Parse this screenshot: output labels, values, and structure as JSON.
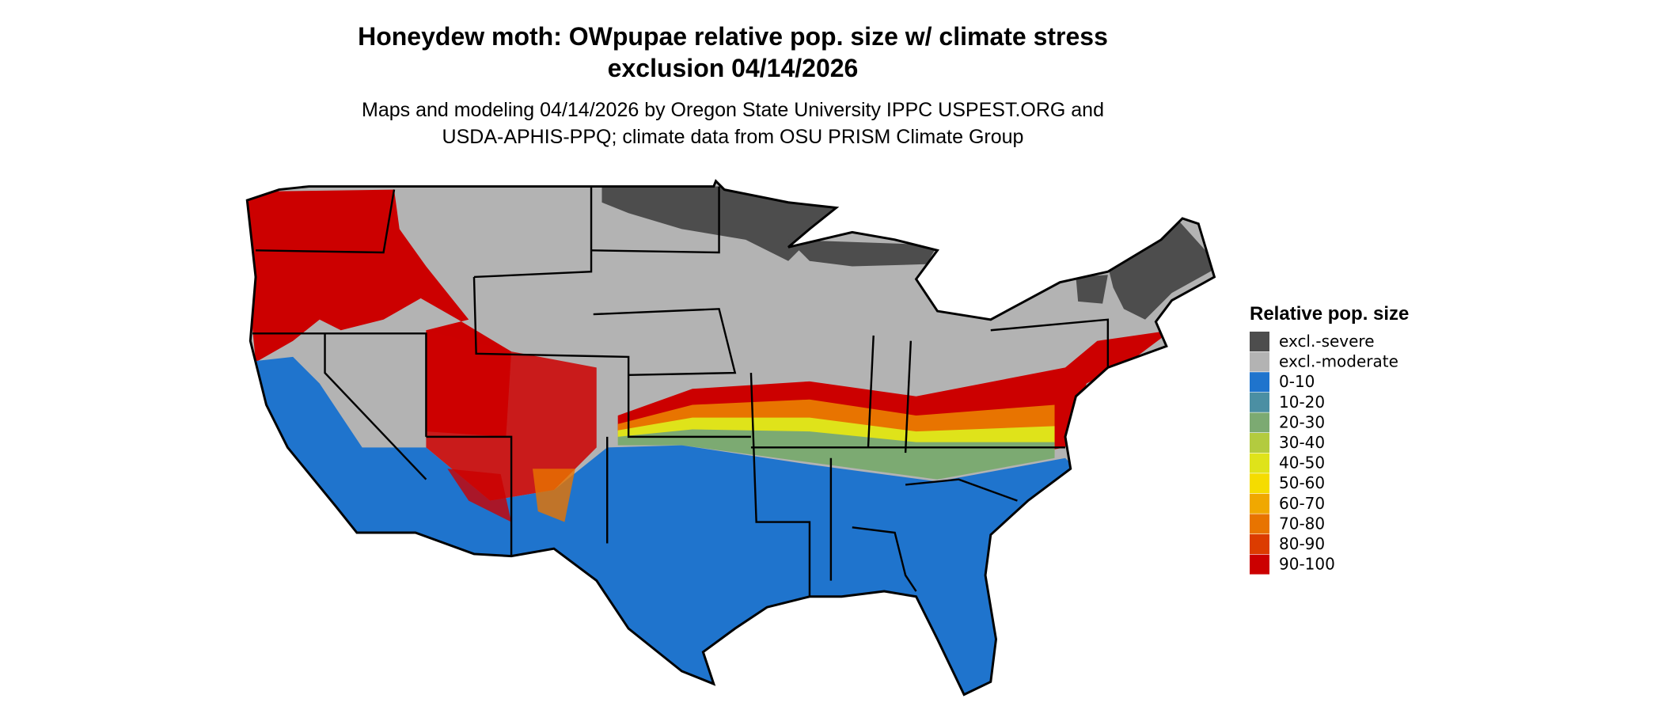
{
  "title": [
    "Honeydew moth: OWpupae relative pop. size w/ climate stress",
    "exclusion 04/14/2026"
  ],
  "subtitle": [
    "Maps and modeling 04/14/2026 by Oregon State University IPPC USPEST.ORG and",
    "USDA-APHIS-PPQ; climate data from OSU PRISM Climate Group"
  ],
  "legend": {
    "title": "Relative pop. size",
    "items": [
      {
        "label": "excl.-severe",
        "color": "#4d4d4d"
      },
      {
        "label": "excl.-moderate",
        "color": "#b3b3b3"
      },
      {
        "label": "0-10",
        "color": "#1f74cd"
      },
      {
        "label": "10-20",
        "color": "#4b8fa3"
      },
      {
        "label": "20-30",
        "color": "#7caa72"
      },
      {
        "label": "30-40",
        "color": "#b3cb3f"
      },
      {
        "label": "40-50",
        "color": "#dfe31a"
      },
      {
        "label": "50-60",
        "color": "#f5dc00"
      },
      {
        "label": "60-70",
        "color": "#f0a800"
      },
      {
        "label": "70-80",
        "color": "#e87400"
      },
      {
        "label": "80-90",
        "color": "#dc3c00"
      },
      {
        "label": "90-100",
        "color": "#cc0000"
      }
    ]
  }
}
